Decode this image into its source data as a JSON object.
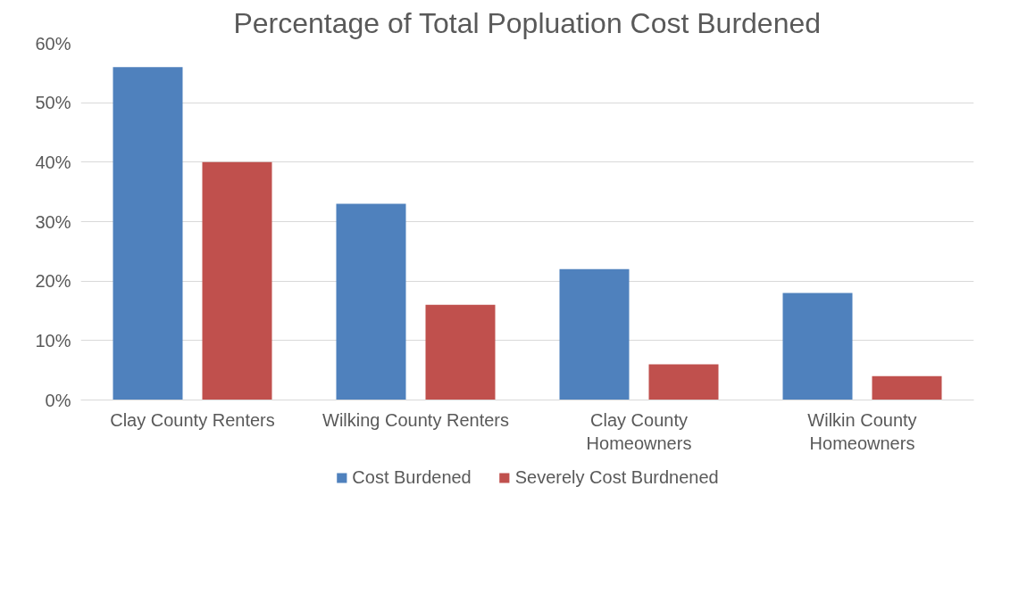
{
  "chart_data": {
    "type": "bar",
    "title": "Percentage of Total Popluation Cost Burdened",
    "categories": [
      "Clay County Renters",
      "Wilking County Renters",
      "Clay County\nHomeowners",
      "Wilkin County\nHomeowners"
    ],
    "series": [
      {
        "name": "Cost Burdened",
        "color": "#4f81bd",
        "values": [
          56,
          33,
          22,
          18
        ]
      },
      {
        "name": "Severely Cost Burdnened",
        "color": "#c0504d",
        "values": [
          40,
          16,
          6,
          4
        ]
      }
    ],
    "ylim": [
      0,
      60
    ],
    "yticks": [
      {
        "value": 0,
        "label": "0%"
      },
      {
        "value": 10,
        "label": "10%"
      },
      {
        "value": 20,
        "label": "20%"
      },
      {
        "value": 30,
        "label": "30%"
      },
      {
        "value": 40,
        "label": "40%"
      },
      {
        "value": 50,
        "label": "50%"
      },
      {
        "value": 60,
        "label": "60%"
      }
    ],
    "grid": "y",
    "legend": "bottom"
  }
}
